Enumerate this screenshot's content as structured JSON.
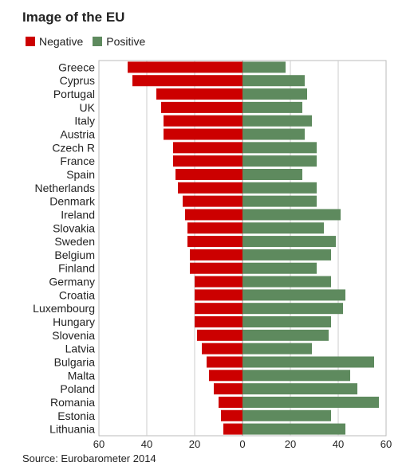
{
  "chart_data": {
    "type": "bar",
    "orientation": "horizontal-diverging",
    "title": "Image of the EU",
    "source": "Source: Eurobarometer 2014",
    "categories": [
      "Greece",
      "Cyprus",
      "Portugal",
      "UK",
      "Italy",
      "Austria",
      "Czech R",
      "France",
      "Spain",
      "Netherlands",
      "Denmark",
      "Ireland",
      "Slovakia",
      "Sweden",
      "Belgium",
      "Finland",
      "Germany",
      "Croatia",
      "Luxembourg",
      "Hungary",
      "Slovenia",
      "Latvia",
      "Bulgaria",
      "Malta",
      "Poland",
      "Romania",
      "Estonia",
      "Lithuania"
    ],
    "series": [
      {
        "name": "Negative",
        "color": "#cc0000",
        "values": [
          48,
          46,
          36,
          34,
          33,
          33,
          29,
          29,
          28,
          27,
          25,
          24,
          23,
          23,
          22,
          22,
          20,
          20,
          20,
          20,
          19,
          17,
          15,
          14,
          12,
          10,
          9,
          8
        ]
      },
      {
        "name": "Positive",
        "color": "#5e8a5e",
        "values": [
          18,
          26,
          27,
          25,
          29,
          26,
          31,
          31,
          25,
          31,
          31,
          41,
          34,
          39,
          37,
          31,
          37,
          43,
          42,
          37,
          36,
          29,
          55,
          45,
          48,
          57,
          37,
          43
        ]
      }
    ],
    "xlim": [
      -60,
      60
    ],
    "xticks": [
      -60,
      -40,
      -20,
      0,
      20,
      40,
      60
    ],
    "xtick_labels": [
      "60",
      "40",
      "20",
      "0",
      "20",
      "40",
      "60"
    ],
    "grid": "vertical",
    "legend": "top-left"
  }
}
